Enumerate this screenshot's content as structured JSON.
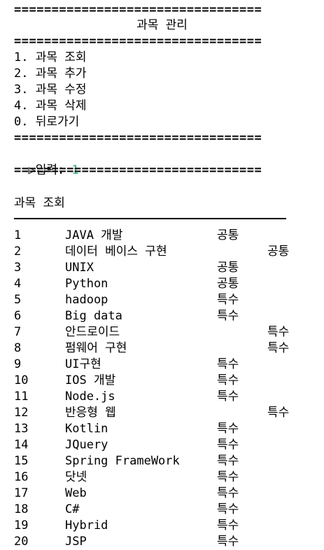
{
  "header": {
    "separator": "=================================",
    "title": "과목 관리"
  },
  "menu": {
    "items": [
      {
        "label": "1. 과목 조회"
      },
      {
        "label": "2. 과목 추가"
      },
      {
        "label": "3. 과목 수정"
      },
      {
        "label": "4. 과목 삭제"
      },
      {
        "label": "0. 뒤로가기"
      }
    ]
  },
  "prompt": {
    "label": "▷입력: ",
    "value": "1"
  },
  "list": {
    "title": "과목 조회",
    "rows": [
      {
        "num": "1",
        "name": "JAVA 개발",
        "type": "공통",
        "shifted": false
      },
      {
        "num": "2",
        "name": "데이터 베이스 구현",
        "type": "공통",
        "shifted": true
      },
      {
        "num": "3",
        "name": "UNIX",
        "type": "공통",
        "shifted": false
      },
      {
        "num": "4",
        "name": "Python",
        "type": "공통",
        "shifted": false
      },
      {
        "num": "5",
        "name": "hadoop",
        "type": "특수",
        "shifted": false
      },
      {
        "num": "6",
        "name": "Big data",
        "type": "특수",
        "shifted": false
      },
      {
        "num": "7",
        "name": "안드로이드",
        "type": "특수",
        "shifted": true
      },
      {
        "num": "8",
        "name": "펌웨어 구현",
        "type": "특수",
        "shifted": true
      },
      {
        "num": "9",
        "name": "UI구현",
        "type": "특수",
        "shifted": false
      },
      {
        "num": "10",
        "name": "IOS 개발",
        "type": "특수",
        "shifted": false
      },
      {
        "num": "11",
        "name": "Node.js",
        "type": "특수",
        "shifted": false
      },
      {
        "num": "12",
        "name": "반응형 웹",
        "type": "특수",
        "shifted": true
      },
      {
        "num": "13",
        "name": "Kotlin",
        "type": "특수",
        "shifted": false
      },
      {
        "num": "14",
        "name": "JQuery",
        "type": "특수",
        "shifted": false
      },
      {
        "num": "15",
        "name": "Spring FrameWork",
        "type": "특수",
        "shifted": false
      },
      {
        "num": "16",
        "name": "닷넷",
        "type": "특수",
        "shifted": false
      },
      {
        "num": "17",
        "name": "Web",
        "type": "특수",
        "shifted": false
      },
      {
        "num": "18",
        "name": "C#",
        "type": "특수",
        "shifted": false
      },
      {
        "num": "19",
        "name": "Hybrid",
        "type": "특수",
        "shifted": false
      },
      {
        "num": "20",
        "name": "JSP",
        "type": "특수",
        "shifted": false
      }
    ]
  }
}
